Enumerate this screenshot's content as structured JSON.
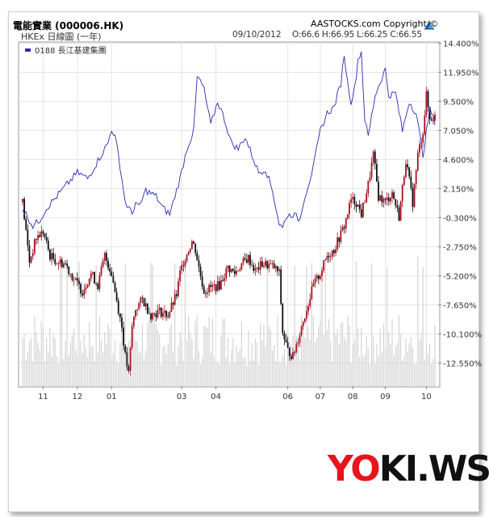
{
  "header": {
    "title": "電能實業 (000006.HK)",
    "copyright": "AASTOCKS.com Copyright ©",
    "subtitle": "HKEx 日線圖 (一年)",
    "date": "09/10/2012",
    "ohlc": "O:66.6 H:66.95 L:66.25 C:66.55",
    "logo_icon": "aastocks-logo-icon"
  },
  "brand": {
    "part1": "YO",
    "part2": "KI.WS"
  },
  "colors": {
    "compare_line": "#2b2bb0",
    "candle_up": "#aa1020",
    "candle_down": "#111111",
    "volume": "#d4d4d4",
    "grid": "#e4e4e4",
    "brand_red": "#e8141c"
  },
  "chart_data": {
    "type": "candlestick",
    "title": "電能實業 (000006.HK)",
    "ylim": [
      -14.5,
      14.5
    ],
    "y_ticks": [
      "14.400%",
      "11.950%",
      "9.500%",
      "7.050%",
      "4.600%",
      "2.150%",
      "-0.300%",
      "-2.750%",
      "-5.200%",
      "-7.650%",
      "-10.100%",
      "-12.550%"
    ],
    "y_tick_values": [
      14.4,
      11.95,
      9.5,
      7.05,
      4.6,
      2.15,
      -0.3,
      -2.75,
      -5.2,
      -7.65,
      -10.1,
      -12.55
    ],
    "x_labels": [
      "11",
      "12",
      "01",
      "03",
      "04",
      "06",
      "07",
      "08",
      "09",
      "10"
    ],
    "x_label_positions": [
      12,
      32,
      52,
      93,
      113,
      155,
      174,
      193,
      212,
      236
    ],
    "days": 242,
    "legend": [
      {
        "label": "0188 長江基建集團",
        "color": "#2b2bb0"
      }
    ],
    "series": [
      {
        "name": "000006.HK",
        "kind": "candlestick",
        "keypoints": [
          [
            0,
            1.0
          ],
          [
            4,
            -4.0
          ],
          [
            8,
            -2.0
          ],
          [
            12,
            -1.5
          ],
          [
            16,
            -3.5
          ],
          [
            20,
            -4.0
          ],
          [
            25,
            -4.2
          ],
          [
            30,
            -5.5
          ],
          [
            35,
            -6.5
          ],
          [
            40,
            -5.0
          ],
          [
            44,
            -6.0
          ],
          [
            48,
            -3.5
          ],
          [
            52,
            -5.0
          ],
          [
            56,
            -8.0
          ],
          [
            58,
            -9.5
          ],
          [
            60,
            -12.0
          ],
          [
            62,
            -13.5
          ],
          [
            64,
            -9.5
          ],
          [
            66,
            -8.0
          ],
          [
            70,
            -7.2
          ],
          [
            75,
            -8.5
          ],
          [
            80,
            -8.2
          ],
          [
            85,
            -8.5
          ],
          [
            90,
            -6.8
          ],
          [
            92,
            -5.0
          ],
          [
            94,
            -4.0
          ],
          [
            97,
            -3.0
          ],
          [
            99,
            -2.3
          ],
          [
            101,
            -3.0
          ],
          [
            103,
            -4.5
          ],
          [
            106,
            -6.5
          ],
          [
            110,
            -6.2
          ],
          [
            115,
            -6.0
          ],
          [
            120,
            -4.5
          ],
          [
            124,
            -5.0
          ],
          [
            128,
            -4.2
          ],
          [
            132,
            -3.7
          ],
          [
            136,
            -4.8
          ],
          [
            140,
            -4.2
          ],
          [
            144,
            -4.3
          ],
          [
            147,
            -4.5
          ],
          [
            150,
            -5.0
          ],
          [
            152,
            -10.0
          ],
          [
            155,
            -11.5
          ],
          [
            158,
            -12.0
          ],
          [
            162,
            -10.0
          ],
          [
            166,
            -8.0
          ],
          [
            170,
            -6.0
          ],
          [
            174,
            -5.0
          ],
          [
            178,
            -3.5
          ],
          [
            182,
            -3.0
          ],
          [
            185,
            -2.0
          ],
          [
            188,
            -1.0
          ],
          [
            192,
            1.2
          ],
          [
            195,
            1.0
          ],
          [
            198,
            0.0
          ],
          [
            202,
            2.5
          ],
          [
            205,
            5.0
          ],
          [
            208,
            1.5
          ],
          [
            212,
            1.0
          ],
          [
            216,
            1.8
          ],
          [
            220,
            -0.2
          ],
          [
            224,
            4.6
          ],
          [
            228,
            1.0
          ],
          [
            231,
            5.0
          ],
          [
            234,
            7.0
          ],
          [
            236,
            10.0
          ],
          [
            238,
            8.0
          ],
          [
            241,
            8.2
          ]
        ]
      },
      {
        "name": "0188 長江基建集團",
        "kind": "line",
        "keypoints": [
          [
            0,
            0.5
          ],
          [
            6,
            -1.0
          ],
          [
            10,
            -0.5
          ],
          [
            14,
            0.5
          ],
          [
            20,
            1.5
          ],
          [
            26,
            2.5
          ],
          [
            32,
            3.5
          ],
          [
            38,
            3.0
          ],
          [
            44,
            4.5
          ],
          [
            50,
            6.0
          ],
          [
            52,
            7.2
          ],
          [
            54,
            6.5
          ],
          [
            56,
            5.0
          ],
          [
            60,
            1.0
          ],
          [
            64,
            0.0
          ],
          [
            66,
            1.0
          ],
          [
            68,
            0.5
          ],
          [
            72,
            2.0
          ],
          [
            78,
            1.5
          ],
          [
            82,
            0.5
          ],
          [
            86,
            0.0
          ],
          [
            92,
            3.0
          ],
          [
            96,
            5.5
          ],
          [
            100,
            7.0
          ],
          [
            102,
            11.5
          ],
          [
            104,
            11.2
          ],
          [
            106,
            10.5
          ],
          [
            110,
            7.5
          ],
          [
            114,
            9.5
          ],
          [
            118,
            8.0
          ],
          [
            122,
            6.0
          ],
          [
            126,
            5.5
          ],
          [
            130,
            6.5
          ],
          [
            134,
            5.0
          ],
          [
            138,
            3.5
          ],
          [
            142,
            3.8
          ],
          [
            146,
            2.0
          ],
          [
            150,
            -0.8
          ],
          [
            152,
            -1.2
          ],
          [
            154,
            -0.2
          ],
          [
            158,
            0.0
          ],
          [
            162,
            -0.5
          ],
          [
            164,
            1.0
          ],
          [
            166,
            2.0
          ],
          [
            168,
            3.0
          ],
          [
            170,
            4.0
          ],
          [
            174,
            7.0
          ],
          [
            178,
            8.5
          ],
          [
            182,
            9.0
          ],
          [
            186,
            11.0
          ],
          [
            188,
            13.5
          ],
          [
            190,
            11.0
          ],
          [
            192,
            9.5
          ],
          [
            194,
            10.5
          ],
          [
            196,
            13.0
          ],
          [
            198,
            13.7
          ],
          [
            200,
            8.0
          ],
          [
            202,
            6.5
          ],
          [
            206,
            10.0
          ],
          [
            210,
            11.5
          ],
          [
            212,
            12.2
          ],
          [
            214,
            10.0
          ],
          [
            218,
            10.2
          ],
          [
            222,
            7.0
          ],
          [
            226,
            9.5
          ],
          [
            230,
            8.5
          ],
          [
            234,
            5.0
          ],
          [
            238,
            8.8
          ],
          [
            241,
            7.8
          ]
        ]
      }
    ]
  }
}
